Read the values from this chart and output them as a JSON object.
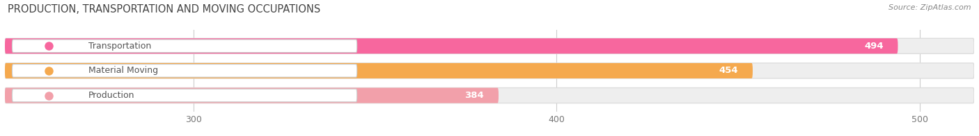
{
  "title": "PRODUCTION, TRANSPORTATION AND MOVING OCCUPATIONS",
  "source": "Source: ZipAtlas.com",
  "categories": [
    "Transportation",
    "Material Moving",
    "Production"
  ],
  "values": [
    494,
    454,
    384
  ],
  "bar_colors": [
    "#f7679e",
    "#f5a94e",
    "#f2a0aa"
  ],
  "bar_bg_colors": [
    "#eeeeee",
    "#eeeeee",
    "#eeeeee"
  ],
  "text_color": "#555555",
  "title_color": "#444444",
  "xlim_min": 248,
  "xlim_max": 515,
  "xticks": [
    300,
    400,
    500
  ],
  "background_color": "#ffffff",
  "bar_height": 0.62,
  "figsize": [
    14.06,
    1.96
  ],
  "dpi": 100
}
